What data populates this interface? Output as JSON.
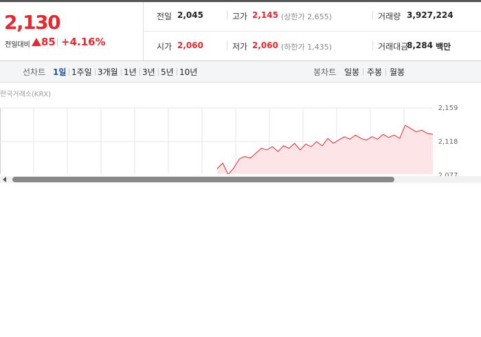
{
  "quote": {
    "price": "2,130",
    "change_label": "전일대비",
    "change": "85",
    "change_rate": "+4.16%"
  },
  "stats": [
    [
      {
        "label": "전일",
        "value": "2,045"
      },
      {
        "label": "고가",
        "value": "2,145",
        "note": "(상한가 2,655)"
      },
      {
        "label": "거래량",
        "value": "3,927,224"
      }
    ],
    [
      {
        "label": "시가",
        "value": "2,060"
      },
      {
        "label": "저가",
        "value": "2,060",
        "note": "(하한가 1,435)"
      },
      {
        "label": "거래대금",
        "value": "8,284",
        "unit": "백만"
      }
    ]
  ],
  "tabs": {
    "line_label": "선차트",
    "line_items": [
      "1일",
      "1주일",
      "3개월",
      "1년",
      "3년",
      "5년",
      "10년"
    ],
    "selected": 0,
    "candle_label": "봉차트",
    "candle_items": [
      "일봉",
      "주봉",
      "월봉"
    ]
  },
  "chart": {
    "source": "한국거래소(KRX)",
    "color": "#e8262d",
    "ylim": [
      2077,
      2159
    ],
    "yticks": [
      {
        "value": 2159,
        "label": "2,159"
      },
      {
        "value": 2118,
        "label": "2,118"
      },
      {
        "value": 2077,
        "label": "2,077"
      }
    ],
    "values": [
      2085,
      2092,
      2078,
      2086,
      2097,
      2100,
      2098,
      2104,
      2110,
      2108,
      2112,
      2106,
      2113,
      2110,
      2116,
      2108,
      2115,
      2112,
      2118,
      2113,
      2122,
      2116,
      2120,
      2124,
      2121,
      2126,
      2122,
      2120,
      2124,
      2121,
      2127,
      2123,
      2126,
      2122,
      2138,
      2134,
      2130,
      2132,
      2128,
      2127
    ]
  }
}
